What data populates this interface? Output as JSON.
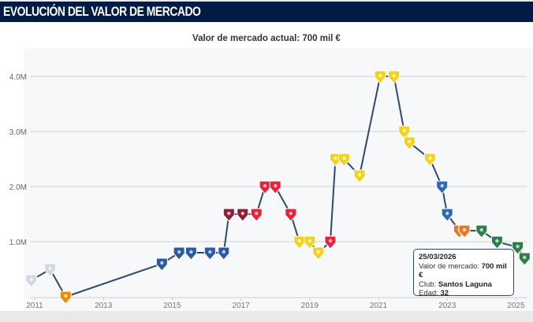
{
  "header": {
    "title": "EVOLUCIÓN DEL VALOR DE MERCADO"
  },
  "subtitle": "Valor de mercado actual: 700 mil €",
  "chart_data": {
    "type": "line",
    "title": "Valor de mercado actual: 700 mil €",
    "xlabel": "",
    "ylabel": "",
    "xlim": [
      2010.8,
      2025.5
    ],
    "ylim": [
      0,
      4.0
    ],
    "grid": true,
    "x_ticks": [
      "2011",
      "2013",
      "2015",
      "2017",
      "2019",
      "2021",
      "2023",
      "2025"
    ],
    "y_ticks": [
      "1.0M",
      "2.0M",
      "3.0M",
      "4.0M"
    ],
    "line_color": "#2e4870",
    "points": [
      {
        "x": 2010.9,
        "y": 0.3,
        "club_color": "#cfd8e3"
      },
      {
        "x": 2011.45,
        "y": 0.5,
        "club_color": "#cfd8e3"
      },
      {
        "x": 2011.9,
        "y": 0.0,
        "club_color": "#f08a00"
      },
      {
        "x": 2014.7,
        "y": 0.6,
        "club_color": "#2a5aa0"
      },
      {
        "x": 2015.2,
        "y": 0.8,
        "club_color": "#2a5aa0"
      },
      {
        "x": 2015.55,
        "y": 0.8,
        "club_color": "#2a5aa0"
      },
      {
        "x": 2016.1,
        "y": 0.8,
        "club_color": "#2a5aa0"
      },
      {
        "x": 2016.5,
        "y": 0.8,
        "club_color": "#2a5aa0"
      },
      {
        "x": 2016.65,
        "y": 1.5,
        "club_color": "#8a2035"
      },
      {
        "x": 2017.05,
        "y": 1.5,
        "club_color": "#8a2035"
      },
      {
        "x": 2017.45,
        "y": 1.5,
        "club_color": "#e8203a"
      },
      {
        "x": 2017.7,
        "y": 2.0,
        "club_color": "#e8203a"
      },
      {
        "x": 2018.0,
        "y": 2.0,
        "club_color": "#e8203a"
      },
      {
        "x": 2018.45,
        "y": 1.5,
        "club_color": "#e8203a"
      },
      {
        "x": 2018.7,
        "y": 1.0,
        "club_color": "#f2d21c"
      },
      {
        "x": 2019.0,
        "y": 1.0,
        "club_color": "#f2d21c"
      },
      {
        "x": 2019.25,
        "y": 0.8,
        "club_color": "#f2d21c"
      },
      {
        "x": 2019.6,
        "y": 1.0,
        "club_color": "#e8203a"
      },
      {
        "x": 2019.75,
        "y": 2.5,
        "club_color": "#f2d21c"
      },
      {
        "x": 2020.0,
        "y": 2.5,
        "club_color": "#f2d21c"
      },
      {
        "x": 2020.45,
        "y": 2.2,
        "club_color": "#f2d21c"
      },
      {
        "x": 2021.05,
        "y": 4.0,
        "club_color": "#f2d21c"
      },
      {
        "x": 2021.45,
        "y": 4.0,
        "club_color": "#f2d21c"
      },
      {
        "x": 2021.75,
        "y": 3.0,
        "club_color": "#f2d21c"
      },
      {
        "x": 2021.9,
        "y": 2.8,
        "club_color": "#f2d21c"
      },
      {
        "x": 2022.5,
        "y": 2.5,
        "club_color": "#f2d21c"
      },
      {
        "x": 2022.85,
        "y": 2.0,
        "club_color": "#2c6ab8"
      },
      {
        "x": 2023.0,
        "y": 1.5,
        "club_color": "#2c6ab8"
      },
      {
        "x": 2023.35,
        "y": 1.2,
        "club_color": "#e07a2a"
      },
      {
        "x": 2023.5,
        "y": 1.2,
        "club_color": "#e07a2a"
      },
      {
        "x": 2024.0,
        "y": 1.2,
        "club_color": "#2f7d4a"
      },
      {
        "x": 2024.45,
        "y": 1.0,
        "club_color": "#2f7d4a"
      },
      {
        "x": 2025.05,
        "y": 0.9,
        "club_color": "#2f7d4a"
      },
      {
        "x": 2025.25,
        "y": 0.7,
        "club_color": "#2f7d4a"
      }
    ]
  },
  "tooltip": {
    "date": "25/03/2026",
    "value_label": "Valor de mercado:",
    "value": "700 mil €",
    "club_label": "Club:",
    "club": "Santos Laguna",
    "age_label": "Edad:",
    "age": "32"
  }
}
